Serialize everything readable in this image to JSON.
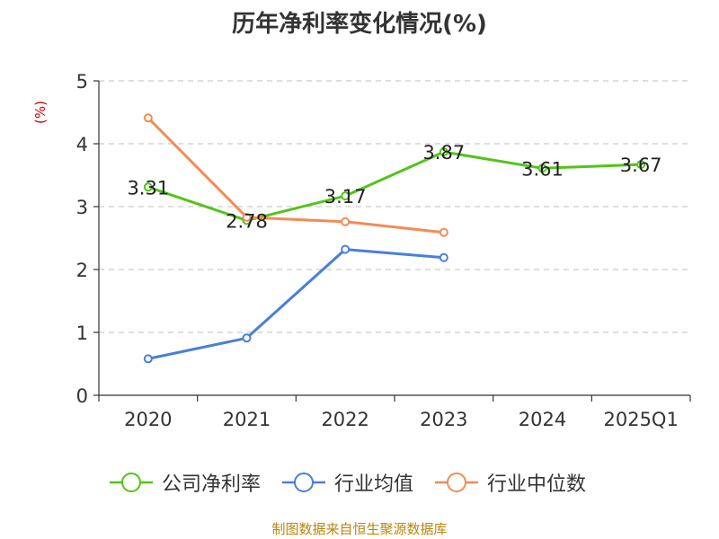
{
  "chart_data": {
    "type": "line",
    "title": "历年净利率变化情况(%)",
    "ylabel": "(%)",
    "categories": [
      "2020",
      "2021",
      "2022",
      "2023",
      "2024",
      "2025Q1"
    ],
    "ylim": [
      0,
      5
    ],
    "yticks": [
      0,
      1,
      2,
      3,
      4,
      5
    ],
    "grid": true,
    "legend_position": "bottom",
    "series": [
      {
        "name": "公司净利率",
        "color": "#52c41a",
        "values": [
          3.31,
          2.78,
          3.17,
          3.87,
          3.61,
          3.67
        ],
        "labels": [
          "3.31",
          "2.78",
          "3.17",
          "3.87",
          "3.61",
          "3.67"
        ]
      },
      {
        "name": "行业均值",
        "color": "#4a7fd8",
        "values": [
          0.58,
          0.91,
          2.32,
          2.19,
          null,
          null
        ]
      },
      {
        "name": "行业中位数",
        "color": "#f28c54",
        "values": [
          4.41,
          2.83,
          2.76,
          2.59,
          null,
          null
        ]
      }
    ]
  },
  "source": "制图数据来自恒生聚源数据库"
}
